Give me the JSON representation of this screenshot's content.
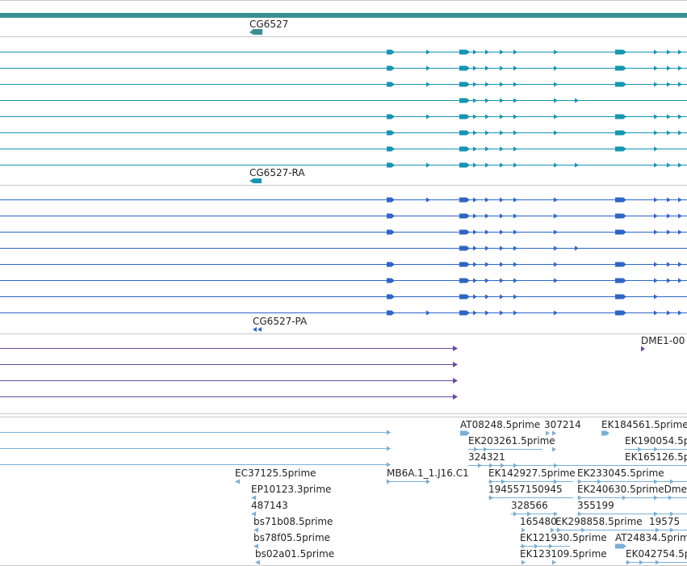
{
  "colors": {
    "gene": "#3a8f94",
    "transcript_ra": "#1795b3",
    "transcript_pa": "#2e66c7",
    "purple": "#6a4aa2",
    "est": "#7ab0d8",
    "divider": "#c8c8c8"
  },
  "tracks": {
    "gene_label": "CG6527",
    "transcript_ra_label": "CG6527-RA",
    "transcript_pa_label": "CG6527-PA",
    "dme_label": "DME1-00",
    "est_labels": [
      "AT08248.5prime",
      "307214",
      "EK184561.5prime",
      "EK203261.5prime",
      "EK190054.5p",
      "324321",
      "EK165126.5p",
      "EC37125.5prime",
      "MB6A.1_1.J16.C1",
      "EK142927.5prime",
      "EK233045.5prime",
      "EP10123.3prime",
      "194557150945",
      "EK240630.5primeDme",
      "487143",
      "328566",
      "355199",
      "bs71b08.5prime",
      "165480",
      "EK298858.5prime",
      "19575",
      "bs78f05.5prime",
      "EK121930.5prime",
      "AT24834.5prim",
      "bs02a01.5prime",
      "EK123109.5prime",
      "EK042754.5p"
    ]
  }
}
